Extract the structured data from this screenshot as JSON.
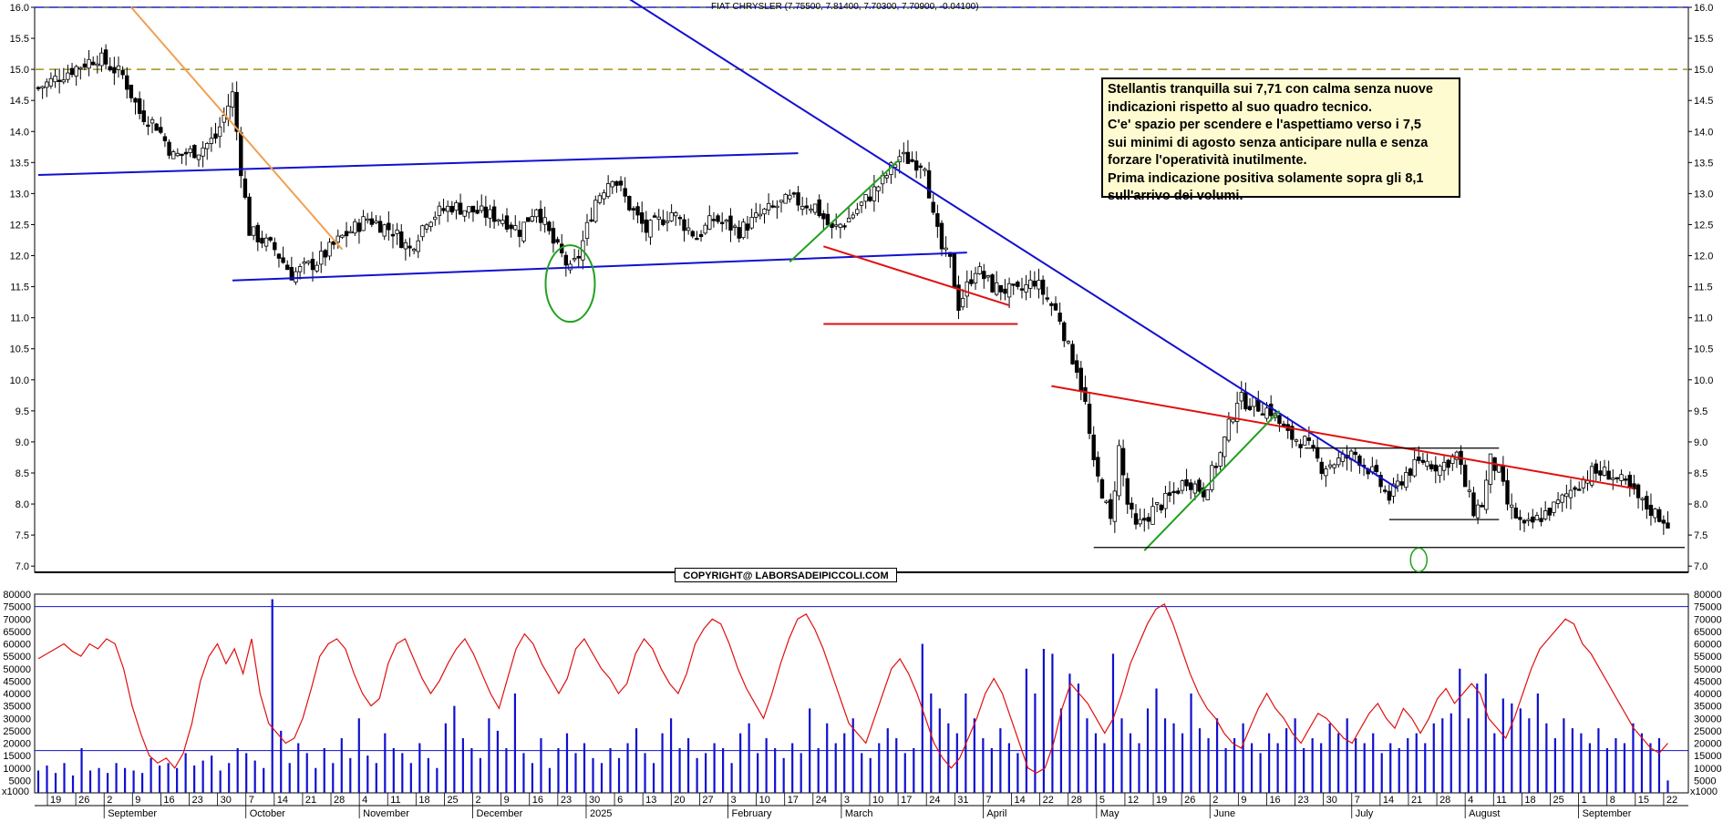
{
  "title": "FIAT CHRYSLER (7.75500, 7.81400, 7.70300, 7.70900, -0.04100)",
  "copyright": "COPYRIGHT@ LABORSADEIPICCOLI.COM",
  "note_lines": [
    "Stellantis tranquilla sui 7,71 con calma senza nuove",
    "indicazioni rispetto al suo quadro tecnico.",
    "C'e' spazio per scendere e l'aspettiamo verso i 7,5",
    "sui minimi di agosto senza anticipare nulla e senza",
    "forzare l'operatività inutilmente.",
    "Prima indicazione positiva solamente sopra gli 8,1",
    "sull'arrivo dei volumi."
  ],
  "colors": {
    "up_candle": "#ffffff",
    "down_candle": "#000000",
    "trend_blue": "#1010d0",
    "trend_red": "#e01010",
    "trend_orange": "#f0a050",
    "trend_green": "#20a020",
    "volume_bar": "#1010d0",
    "oscillator": "#e01010",
    "level_dash_blue": "#2020c0",
    "level_dash_olive": "#a09020"
  },
  "chart_data": [
    {
      "type": "candlestick",
      "title": "FIAT CHRYSLER (7.75500, 7.81400, 7.70300, 7.70900, -0.04100)",
      "ylim": [
        6.9,
        16.0
      ],
      "y_ticks": [
        "7.0",
        "7.5",
        "8.0",
        "8.5",
        "9.0",
        "9.5",
        "10.0",
        "10.5",
        "11.0",
        "11.5",
        "12.0",
        "12.5",
        "13.0",
        "13.5",
        "14.0",
        "14.5",
        "15.0",
        "15.5",
        "16.0"
      ],
      "horizontal_levels": [
        16.0,
        15.0
      ],
      "last_close": 7.709,
      "close_path": [
        [
          0,
          14.7
        ],
        [
          8,
          15.0
        ],
        [
          14,
          15.2
        ],
        [
          20,
          14.9
        ],
        [
          24,
          14.3
        ],
        [
          28,
          14.1
        ],
        [
          32,
          13.6
        ],
        [
          38,
          13.7
        ],
        [
          42,
          13.9
        ],
        [
          46,
          14.6
        ],
        [
          48,
          13.4
        ],
        [
          50,
          12.4
        ],
        [
          56,
          12.1
        ],
        [
          60,
          11.7
        ],
        [
          66,
          11.9
        ],
        [
          72,
          12.3
        ],
        [
          78,
          12.6
        ],
        [
          84,
          12.4
        ],
        [
          88,
          12.1
        ],
        [
          92,
          12.6
        ],
        [
          98,
          12.8
        ],
        [
          104,
          12.7
        ],
        [
          110,
          12.6
        ],
        [
          114,
          12.4
        ],
        [
          118,
          12.8
        ],
        [
          122,
          12.2
        ],
        [
          124,
          12.0
        ],
        [
          126,
          11.75
        ],
        [
          128,
          12.0
        ],
        [
          132,
          12.9
        ],
        [
          136,
          13.3
        ],
        [
          140,
          12.8
        ],
        [
          144,
          12.4
        ],
        [
          150,
          12.7
        ],
        [
          156,
          12.3
        ],
        [
          160,
          12.6
        ],
        [
          166,
          12.4
        ],
        [
          172,
          12.7
        ],
        [
          178,
          12.9
        ],
        [
          184,
          12.8
        ],
        [
          188,
          12.4
        ],
        [
          192,
          12.6
        ],
        [
          196,
          12.9
        ],
        [
          200,
          13.2
        ],
        [
          204,
          13.6
        ],
        [
          208,
          13.5
        ],
        [
          210,
          13.5
        ],
        [
          212,
          12.6
        ],
        [
          214,
          12.1
        ],
        [
          216,
          11.9
        ],
        [
          218,
          11.2
        ],
        [
          222,
          11.8
        ],
        [
          226,
          11.5
        ],
        [
          232,
          11.4
        ],
        [
          236,
          11.6
        ],
        [
          240,
          11.2
        ],
        [
          242,
          11.0
        ],
        [
          244,
          10.5
        ],
        [
          246,
          10.2
        ],
        [
          248,
          9.6
        ],
        [
          250,
          8.6
        ],
        [
          252,
          8.2
        ],
        [
          254,
          7.7
        ],
        [
          256,
          8.9
        ],
        [
          258,
          8.0
        ],
        [
          260,
          7.6
        ],
        [
          264,
          7.9
        ],
        [
          268,
          8.1
        ],
        [
          272,
          8.4
        ],
        [
          276,
          8.2
        ],
        [
          280,
          8.8
        ],
        [
          284,
          9.7
        ],
        [
          288,
          9.6
        ],
        [
          292,
          9.5
        ],
        [
          296,
          9.1
        ],
        [
          300,
          9.0
        ],
        [
          304,
          8.6
        ],
        [
          308,
          8.7
        ],
        [
          312,
          8.8
        ],
        [
          316,
          8.5
        ],
        [
          320,
          8.1
        ],
        [
          324,
          8.5
        ],
        [
          328,
          8.7
        ],
        [
          332,
          8.6
        ],
        [
          336,
          8.8
        ],
        [
          338,
          8.3
        ],
        [
          340,
          7.9
        ],
        [
          342,
          8.0
        ],
        [
          344,
          8.7
        ],
        [
          346,
          8.5
        ],
        [
          348,
          8.0
        ],
        [
          350,
          7.8
        ],
        [
          352,
          7.6
        ],
        [
          356,
          7.8
        ],
        [
          360,
          8.0
        ],
        [
          364,
          8.3
        ],
        [
          368,
          8.5
        ],
        [
          372,
          8.5
        ],
        [
          376,
          8.3
        ],
        [
          380,
          8.0
        ],
        [
          384,
          7.8
        ],
        [
          386,
          7.71
        ]
      ],
      "trendlines": [
        {
          "color": "blue",
          "from": [
            0,
            13.3
          ],
          "to": [
            180,
            13.65
          ]
        },
        {
          "color": "blue",
          "from": [
            46,
            11.6
          ],
          "to": [
            220,
            12.05
          ]
        },
        {
          "color": "blue",
          "from": [
            120,
            17.0
          ],
          "to": [
            322,
            8.25
          ]
        },
        {
          "color": "orange",
          "from": [
            22,
            16.0
          ],
          "to": [
            72,
            12.1
          ]
        },
        {
          "color": "red",
          "from": [
            186,
            12.15
          ],
          "to": [
            230,
            11.2
          ]
        },
        {
          "color": "red",
          "from": [
            240,
            9.9
          ],
          "to": [
            378,
            8.25
          ]
        },
        {
          "color": "green",
          "from": [
            178,
            11.9
          ],
          "to": [
            204,
            13.55
          ]
        },
        {
          "color": "green",
          "from": [
            262,
            7.25
          ],
          "to": [
            294,
            9.5
          ]
        }
      ],
      "support_levels": [
        {
          "color": "red",
          "value": 10.9
        },
        {
          "color": "black",
          "value": 7.3
        },
        {
          "color": "black",
          "value": 8.9
        },
        {
          "color": "black",
          "value": 7.75
        }
      ],
      "x_tick_labels": [
        "19",
        "26",
        "2",
        "9",
        "16",
        "23",
        "30",
        "7",
        "14",
        "21",
        "28",
        "4",
        "11",
        "18",
        "25",
        "2",
        "9",
        "16",
        "23",
        "30",
        "6",
        "13",
        "20",
        "27",
        "3",
        "10",
        "17",
        "24",
        "3",
        "10",
        "17",
        "24",
        "31",
        "7",
        "14",
        "22",
        "28",
        "5",
        "12",
        "19",
        "26",
        "2",
        "9",
        "16",
        "23",
        "30",
        "7",
        "14",
        "21",
        "28",
        "4",
        "11",
        "18",
        "25",
        "1",
        "8",
        "15",
        "22"
      ],
      "month_labels": [
        "September",
        "October",
        "November",
        "December",
        "2025",
        "February",
        "March",
        "April",
        "May",
        "June",
        "July",
        "August",
        "September"
      ]
    },
    {
      "type": "bar+line",
      "ylim": [
        0,
        80000
      ],
      "y_ticks": [
        "5000",
        "10000",
        "15000",
        "20000",
        "25000",
        "30000",
        "35000",
        "40000",
        "45000",
        "50000",
        "55000",
        "60000",
        "65000",
        "70000",
        "75000",
        "80000"
      ],
      "unit_label": "x1000",
      "horizontal_levels": [
        75000,
        17000
      ],
      "series": [
        {
          "name": "volume",
          "kind": "bar",
          "values": [
            9,
            11,
            8,
            12,
            7,
            18,
            9,
            10,
            8,
            12,
            10,
            9,
            8,
            14,
            11,
            12,
            10,
            16,
            11,
            13,
            15,
            9,
            12,
            18,
            16,
            13,
            10,
            78,
            25,
            12,
            20,
            16,
            10,
            18,
            12,
            22,
            14,
            30,
            15,
            12,
            24,
            18,
            16,
            12,
            20,
            14,
            10,
            28,
            35,
            22,
            18,
            14,
            30,
            25,
            18,
            40,
            16,
            12,
            22,
            10,
            18,
            24,
            16,
            20,
            14,
            12,
            18,
            14,
            20,
            26,
            16,
            12,
            24,
            30,
            18,
            22,
            14,
            16,
            20,
            18,
            12,
            24,
            28,
            16,
            22,
            18,
            14,
            20,
            16,
            34,
            18,
            28,
            20,
            24,
            30,
            16,
            14,
            20,
            26,
            22,
            16,
            18,
            60,
            40,
            34,
            28,
            24,
            40,
            30,
            22,
            18,
            26,
            20,
            16,
            50,
            40,
            58,
            56,
            34,
            48,
            44,
            30,
            24,
            20,
            56,
            30,
            24,
            20,
            34,
            42,
            30,
            28,
            24,
            40,
            26,
            22,
            30,
            18,
            22,
            28,
            20,
            16,
            24,
            20,
            26,
            30,
            18,
            22,
            20,
            28,
            24,
            30,
            22,
            20,
            24,
            16,
            20,
            18,
            22,
            24,
            20,
            28,
            30,
            32,
            50,
            30,
            44,
            48,
            24,
            38,
            36,
            34,
            30,
            40,
            28,
            22,
            30,
            26,
            24,
            20,
            26,
            18,
            22,
            20,
            28,
            24,
            20,
            22,
            5
          ]
        },
        {
          "name": "oscillator",
          "kind": "line",
          "values": [
            54,
            56,
            58,
            60,
            57,
            55,
            60,
            58,
            62,
            60,
            50,
            35,
            24,
            15,
            12,
            14,
            10,
            16,
            28,
            45,
            55,
            60,
            52,
            58,
            48,
            62,
            40,
            28,
            24,
            20,
            22,
            30,
            42,
            55,
            60,
            62,
            58,
            48,
            40,
            35,
            38,
            52,
            60,
            62,
            54,
            46,
            40,
            45,
            52,
            58,
            62,
            56,
            48,
            40,
            34,
            46,
            58,
            64,
            60,
            52,
            46,
            40,
            46,
            58,
            62,
            56,
            50,
            46,
            40,
            44,
            56,
            62,
            58,
            50,
            44,
            40,
            48,
            60,
            66,
            70,
            68,
            60,
            50,
            42,
            36,
            30,
            40,
            52,
            62,
            70,
            72,
            66,
            58,
            48,
            38,
            28,
            24,
            20,
            30,
            40,
            50,
            54,
            48,
            40,
            30,
            20,
            14,
            10,
            14,
            22,
            30,
            40,
            46,
            40,
            30,
            20,
            10,
            8,
            10,
            20,
            34,
            44,
            40,
            36,
            30,
            24,
            30,
            40,
            52,
            60,
            68,
            74,
            76,
            68,
            58,
            48,
            40,
            34,
            30,
            24,
            20,
            18,
            26,
            34,
            40,
            34,
            30,
            24,
            20,
            26,
            32,
            30,
            26,
            22,
            20,
            26,
            32,
            36,
            30,
            26,
            34,
            30,
            24,
            30,
            38,
            42,
            36,
            40,
            44,
            40,
            30,
            26,
            22,
            30,
            40,
            50,
            58,
            62,
            66,
            70,
            68,
            60,
            56,
            50,
            44,
            38,
            32,
            26,
            22,
            18,
            16,
            20
          ]
        }
      ]
    }
  ]
}
